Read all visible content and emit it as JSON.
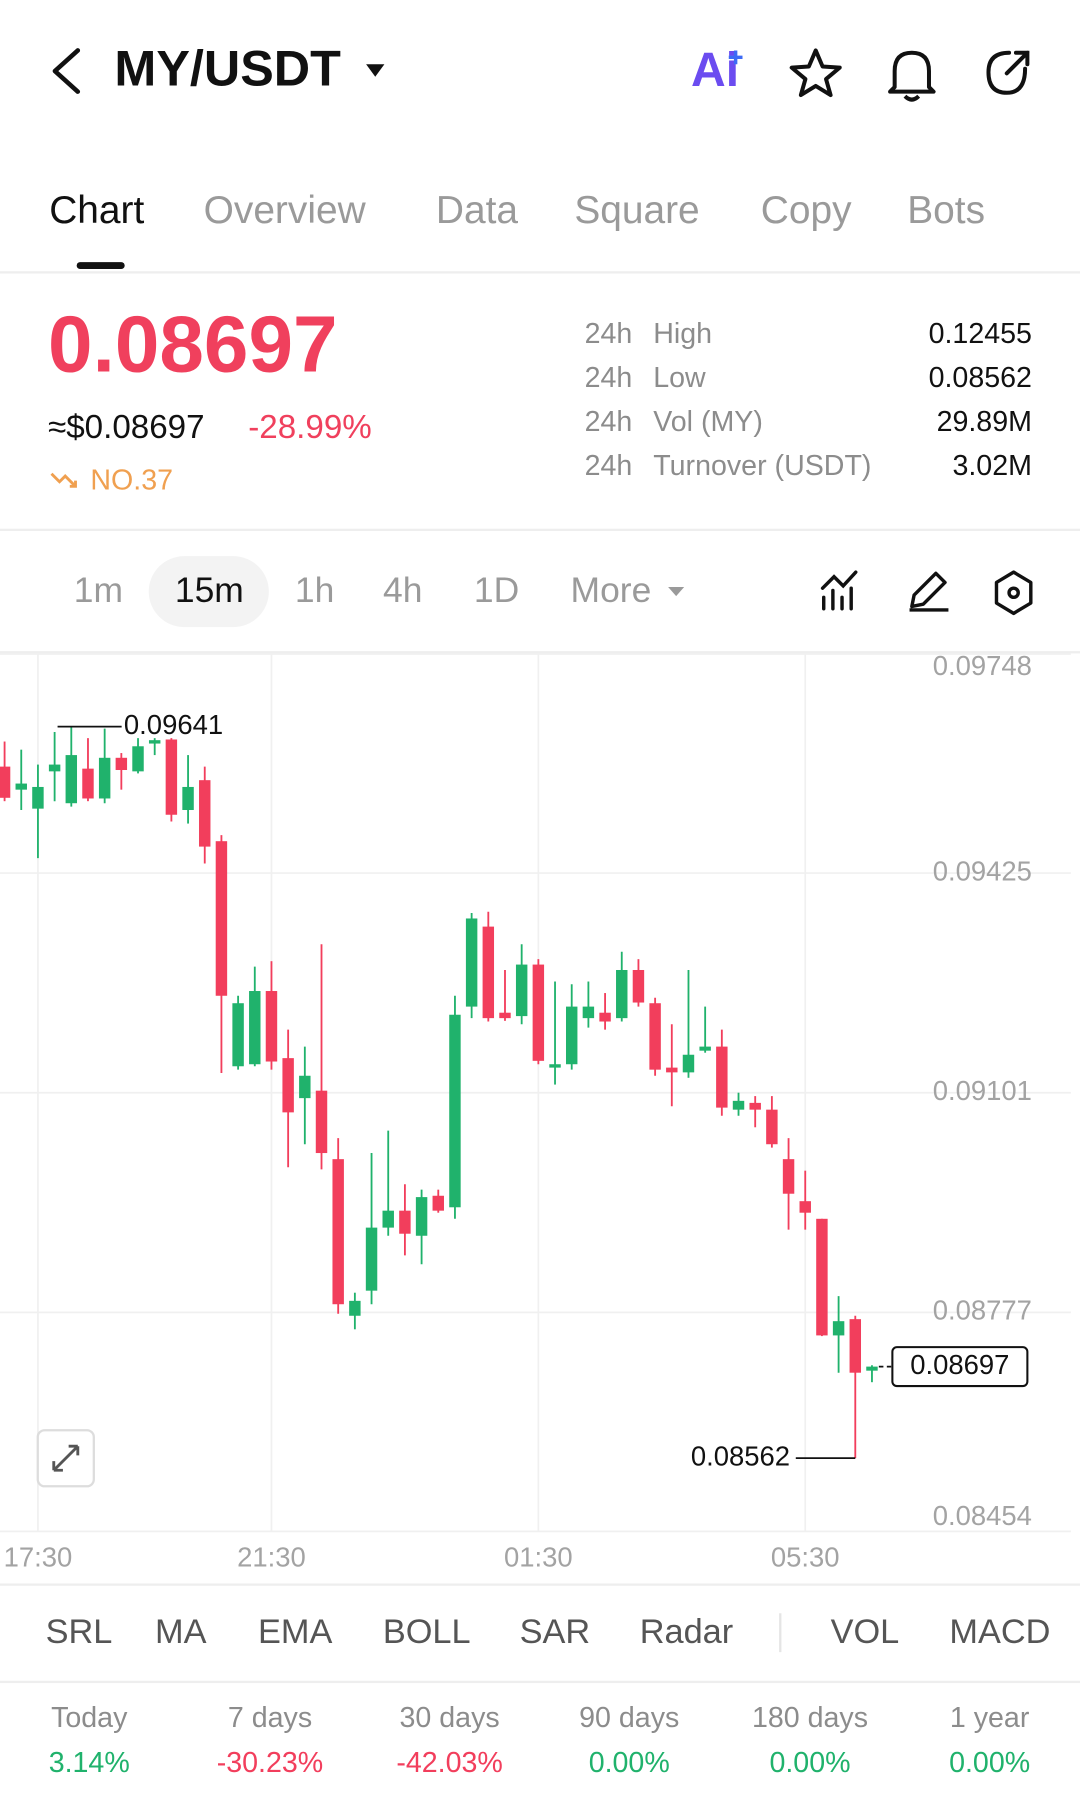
{
  "header": {
    "pair": "MY/USDT",
    "ai": "Ai"
  },
  "tabs": [
    "Chart",
    "Overview",
    "Data",
    "Square",
    "Copy",
    "Bots"
  ],
  "price": {
    "last": "0.08697",
    "usd": "≈$0.08697",
    "change": "-28.99%",
    "rank": "NO.37"
  },
  "stats": [
    {
      "period": "24h",
      "label": "High",
      "value": "0.12455"
    },
    {
      "period": "24h",
      "label": "Low",
      "value": "0.08562"
    },
    {
      "period": "24h",
      "label": "Vol (MY)",
      "value": "29.89M"
    },
    {
      "period": "24h",
      "label": "Turnover (USDT)",
      "value": "3.02M"
    }
  ],
  "intervals": [
    "1m",
    "15m",
    "1h",
    "4h",
    "1D",
    "More"
  ],
  "chart_data": {
    "type": "candlestick",
    "categories": [
      null,
      null,
      "17:30",
      null,
      null,
      null,
      null,
      null,
      null,
      null,
      null,
      null,
      null,
      null,
      null,
      null,
      "21:30",
      null,
      null,
      null,
      null,
      null,
      null,
      null,
      null,
      null,
      null,
      null,
      null,
      null,
      null,
      null,
      "01:30",
      null,
      null,
      null,
      null,
      null,
      null,
      null,
      null,
      null,
      null,
      null,
      null,
      null,
      null,
      null,
      "05:30",
      null,
      null,
      null,
      null
    ],
    "open": [
      0.09582,
      0.09548,
      0.0952,
      0.09575,
      0.09528,
      0.09579,
      0.09535,
      0.09595,
      0.09575,
      0.09616,
      0.09622,
      0.09518,
      0.09562,
      0.09472,
      0.0914,
      0.09143,
      0.09251,
      0.09152,
      0.09093,
      0.09104,
      0.09003,
      0.08772,
      0.08809,
      0.08902,
      0.08927,
      0.0889,
      0.08949,
      0.08932,
      0.09228,
      0.09346,
      0.09219,
      0.09214,
      0.0929,
      0.09138,
      0.09143,
      0.09211,
      0.09219,
      0.09211,
      0.09282,
      0.09233,
      0.09138,
      0.09131,
      0.09163,
      0.09169,
      0.09076,
      0.09086,
      0.09076,
      0.09003,
      0.08941,
      0.08915,
      0.08743,
      0.08767,
      0.08691
    ],
    "high": [
      0.09619,
      0.09607,
      0.09585,
      0.09633,
      0.09641,
      0.09624,
      0.09638,
      0.09602,
      0.09624,
      0.09624,
      0.09624,
      0.09599,
      0.09582,
      0.09481,
      0.09244,
      0.09287,
      0.09295,
      0.09194,
      0.09169,
      0.0932,
      0.09034,
      0.08806,
      0.09012,
      0.09045,
      0.08966,
      0.08958,
      0.08958,
      0.09244,
      0.09366,
      0.09368,
      0.09282,
      0.0932,
      0.09298,
      0.09265,
      0.09261,
      0.09265,
      0.09248,
      0.09309,
      0.09298,
      0.09241,
      0.09202,
      0.09282,
      0.09228,
      0.09194,
      0.09101,
      0.09096,
      0.09096,
      0.09034,
      0.08986,
      0.08915,
      0.08801,
      0.08772,
      0.08699
    ],
    "low": [
      0.09531,
      0.09518,
      0.09447,
      0.09531,
      0.09523,
      0.09531,
      0.09528,
      0.09548,
      0.09572,
      0.09599,
      0.09501,
      0.09498,
      0.09439,
      0.0913,
      0.09135,
      0.0914,
      0.09135,
      0.08991,
      0.09025,
      0.08988,
      0.08775,
      0.08752,
      0.08789,
      0.0889,
      0.08861,
      0.08848,
      0.08924,
      0.08915,
      0.09211,
      0.09206,
      0.09207,
      0.09202,
      0.09143,
      0.09113,
      0.09135,
      0.09197,
      0.09194,
      0.09206,
      0.09228,
      0.09126,
      0.09081,
      0.09123,
      0.0916,
      0.09067,
      0.09067,
      0.0905,
      0.0902,
      0.08899,
      0.08899,
      0.08742,
      0.08688,
      0.08562,
      0.08674
    ],
    "close": [
      0.09536,
      0.09557,
      0.09552,
      0.09585,
      0.09599,
      0.09535,
      0.09595,
      0.09577,
      0.09612,
      0.09621,
      0.09511,
      0.09552,
      0.09464,
      0.09244,
      0.09233,
      0.09251,
      0.09147,
      0.09072,
      0.09126,
      0.09012,
      0.08789,
      0.08794,
      0.08902,
      0.08927,
      0.08893,
      0.08947,
      0.08927,
      0.09216,
      0.09358,
      0.09211,
      0.09211,
      0.0929,
      0.09148,
      0.09143,
      0.09228,
      0.09228,
      0.09206,
      0.09282,
      0.09234,
      0.09135,
      0.09131,
      0.09157,
      0.09169,
      0.09079,
      0.09089,
      0.09076,
      0.09025,
      0.08952,
      0.08924,
      0.08743,
      0.08764,
      0.08688,
      0.08697
    ],
    "up_color": "#20b26c",
    "down_color": "#f23e5c",
    "ylim": [
      0.08454,
      0.09748
    ],
    "yticks": [
      0.08454,
      0.08777,
      0.09101,
      0.09425,
      0.09748
    ],
    "grid": true
  },
  "indicators": [
    "SRL",
    "MA",
    "EMA",
    "BOLL",
    "SAR",
    "Radar",
    "VOL",
    "MACD"
  ],
  "performance": [
    {
      "period": "Today",
      "value": "3.14%"
    },
    {
      "period": "7 days",
      "value": "-30.23%"
    },
    {
      "period": "30 days",
      "value": "-42.03%"
    },
    {
      "period": "90 days",
      "value": "0.00%"
    },
    {
      "period": "180 days",
      "value": "0.00%"
    },
    {
      "period": "1 year",
      "value": "0.00%"
    }
  ]
}
